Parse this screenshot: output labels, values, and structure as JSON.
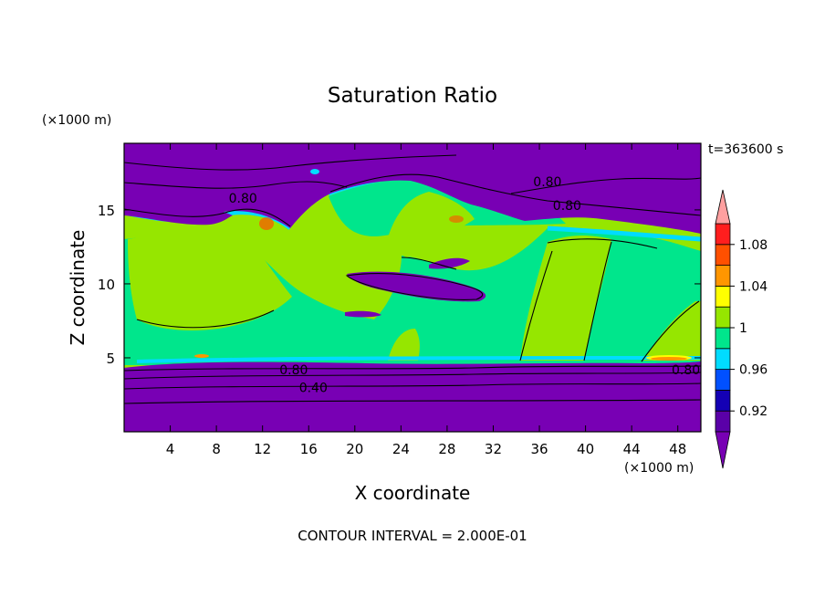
{
  "chart_data": {
    "type": "heatmap",
    "title": "Saturation Ratio",
    "xlabel": "X coordinate",
    "ylabel": "Z coordinate",
    "x_unit": "(×1000 m)",
    "y_unit": "(×1000 m)",
    "time_label": "t=363600 s",
    "footer": "CONTOUR INTERVAL = 2.000E-01",
    "xlim": [
      0,
      50
    ],
    "ylim": [
      0,
      19.5
    ],
    "x_ticks": [
      4,
      8,
      12,
      16,
      20,
      24,
      28,
      32,
      36,
      40,
      44,
      48
    ],
    "y_ticks": [
      5,
      10,
      15
    ],
    "colorbar": {
      "bounds": [
        0.9,
        0.92,
        0.94,
        0.96,
        0.98,
        1.0,
        1.02,
        1.04,
        1.06,
        1.08,
        1.1
      ],
      "tick_labels": [
        "0.92",
        "0.96",
        "1",
        "1.04",
        "1.08"
      ],
      "tick_values": [
        0.92,
        0.96,
        1.0,
        1.04,
        1.08
      ],
      "colors": [
        "#5a00a8",
        "#1400b4",
        "#0050ff",
        "#00dcff",
        "#00e68c",
        "#96e600",
        "#ffff00",
        "#ff9600",
        "#ff5000",
        "#ff1e1e"
      ],
      "under_color": "#7800b4",
      "over_color": "#ffa0a0"
    },
    "contour_labels": [
      {
        "text": "0.80",
        "x": 36.7,
        "y": 16.9
      },
      {
        "text": "0.80",
        "x": 38.4,
        "y": 15.3
      },
      {
        "text": "0.80",
        "x": 10.3,
        "y": 15.8
      },
      {
        "text": "0.80",
        "x": 14.7,
        "y": 4.2
      },
      {
        "text": "0.80",
        "x": 48.7,
        "y": 4.2
      },
      {
        "text": "0.40",
        "x": 16.4,
        "y": 3.0
      }
    ]
  }
}
